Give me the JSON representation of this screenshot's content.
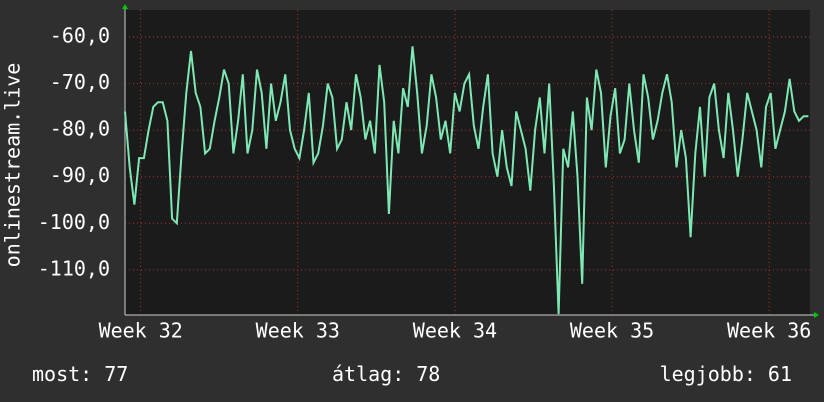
{
  "chart_data": {
    "type": "line",
    "y_label": "onlinestream.live",
    "x": [
      31.9,
      31.93,
      31.96,
      31.99,
      32.02,
      32.05,
      32.08,
      32.11,
      32.14,
      32.17,
      32.2,
      32.23,
      32.26,
      32.29,
      32.32,
      32.35,
      32.38,
      32.41,
      32.44,
      32.47,
      32.5,
      32.53,
      32.56,
      32.59,
      32.62,
      32.65,
      32.68,
      32.71,
      32.74,
      32.77,
      32.8,
      32.83,
      32.86,
      32.89,
      32.92,
      32.95,
      32.98,
      33.01,
      33.04,
      33.07,
      33.1,
      33.13,
      33.16,
      33.19,
      33.22,
      33.25,
      33.28,
      33.31,
      33.34,
      33.37,
      33.4,
      33.43,
      33.46,
      33.49,
      33.52,
      33.55,
      33.58,
      33.61,
      33.64,
      33.67,
      33.7,
      33.73,
      33.76,
      33.79,
      33.82,
      33.85,
      33.88,
      33.91,
      33.94,
      33.97,
      34.0,
      34.03,
      34.06,
      34.09,
      34.12,
      34.15,
      34.18,
      34.21,
      34.24,
      34.27,
      34.3,
      34.33,
      34.36,
      34.39,
      34.42,
      34.45,
      34.48,
      34.51,
      34.54,
      34.57,
      34.6,
      34.63,
      34.66,
      34.69,
      34.72,
      34.75,
      34.78,
      34.81,
      34.84,
      34.87,
      34.9,
      34.93,
      34.96,
      34.99,
      35.02,
      35.05,
      35.08,
      35.11,
      35.14,
      35.17,
      35.2,
      35.23,
      35.26,
      35.29,
      35.32,
      35.35,
      35.38,
      35.41,
      35.44,
      35.47,
      35.5,
      35.53,
      35.56,
      35.59,
      35.62,
      35.65,
      35.68,
      35.71,
      35.74,
      35.77,
      35.8,
      35.83,
      35.86,
      35.89,
      35.92,
      35.95,
      35.98,
      36.01,
      36.04,
      36.07,
      36.1,
      36.13,
      36.16,
      36.19,
      36.22,
      36.25
    ],
    "series": [
      {
        "color": "#7ee8b4",
        "values": [
          -76,
          -88,
          -96,
          -86,
          -86,
          -80,
          -75,
          -74,
          -74,
          -78,
          -99,
          -100,
          -85,
          -72,
          -63,
          -72,
          -75,
          -85,
          -84,
          -78,
          -73,
          -67,
          -70,
          -85,
          -78,
          -68,
          -85,
          -80,
          -67,
          -72,
          -84,
          -70,
          -78,
          -74,
          -68,
          -80,
          -84,
          -86,
          -80,
          -72,
          -87,
          -85,
          -79,
          -70,
          -73,
          -84,
          -82,
          -74,
          -80,
          -68,
          -73,
          -82,
          -78,
          -85,
          -66,
          -74,
          -98,
          -78,
          -85,
          -71,
          -75,
          -62,
          -72,
          -85,
          -79,
          -68,
          -73,
          -82,
          -78,
          -85,
          -72,
          -76,
          -70,
          -68,
          -79,
          -84,
          -75,
          -68,
          -85,
          -90,
          -80,
          -88,
          -92,
          -76,
          -80,
          -84,
          -93,
          -80,
          -73,
          -85,
          -70,
          -92,
          -119.5,
          -84,
          -88,
          -76,
          -90,
          -113,
          -73,
          -80,
          -67,
          -72,
          -88,
          -77,
          -71,
          -85,
          -82,
          -70,
          -80,
          -87,
          -68,
          -73,
          -82,
          -78,
          -72,
          -68,
          -74,
          -88,
          -80,
          -86,
          -103,
          -85,
          -75,
          -90,
          -73,
          -70,
          -80,
          -86,
          -72,
          -80,
          -90,
          -82,
          -72,
          -76,
          -80,
          -88,
          -75,
          -72,
          -84,
          -80,
          -76,
          -69,
          -76,
          -78,
          -77,
          -77
        ]
      }
    ],
    "xlim": [
      31.9,
      36.26
    ],
    "xticks": [
      {
        "value": 32,
        "label": "Week 32"
      },
      {
        "value": 33,
        "label": "Week 33"
      },
      {
        "value": 34,
        "label": "Week 34"
      },
      {
        "value": 35,
        "label": "Week 35"
      },
      {
        "value": 36,
        "label": "Week 36"
      }
    ],
    "ylim": [
      -119.7,
      -54.2
    ],
    "yticks": [
      {
        "value": -60,
        "label": "-60,0"
      },
      {
        "value": -70,
        "label": "-70,0"
      },
      {
        "value": -80,
        "label": "-80,0"
      },
      {
        "value": -90,
        "label": "-90,0"
      },
      {
        "value": -100,
        "label": "-100,0"
      },
      {
        "value": -110,
        "label": "-110,0"
      }
    ],
    "grid": true,
    "stats": [
      {
        "label": "most:",
        "value": 77
      },
      {
        "label": "átlag:",
        "value": 78
      },
      {
        "label": "legjobb:",
        "value": 61
      }
    ]
  }
}
